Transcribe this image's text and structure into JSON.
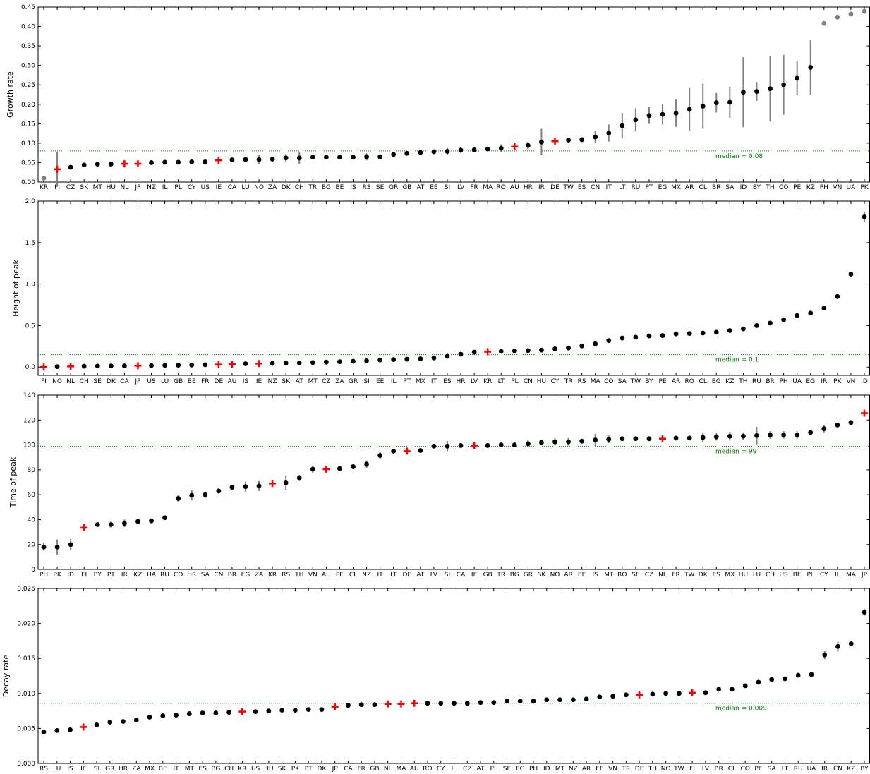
{
  "chart_data": [
    {
      "type": "scatter",
      "ylabel": "Growth rate",
      "ylim": [
        0,
        0.45
      ],
      "yticks": [
        "0.00",
        "0.05",
        "0.10",
        "0.15",
        "0.20",
        "0.25",
        "0.30",
        "0.35",
        "0.40",
        "0.45"
      ],
      "median": 0.08,
      "median_label": "median = 0.08",
      "categories": [
        "KR",
        "FI",
        "CZ",
        "SK",
        "MT",
        "HU",
        "NL",
        "JP",
        "NZ",
        "IL",
        "PL",
        "CY",
        "US",
        "IE",
        "CA",
        "LU",
        "NO",
        "ZA",
        "DK",
        "CH",
        "TR",
        "BG",
        "BE",
        "IS",
        "RS",
        "SE",
        "GR",
        "GB",
        "AT",
        "EE",
        "SI",
        "LV",
        "FR",
        "MA",
        "RO",
        "AU",
        "HR",
        "IR",
        "DE",
        "TW",
        "ES",
        "CN",
        "IT",
        "LT",
        "RU",
        "PT",
        "EG",
        "MX",
        "AR",
        "CL",
        "BR",
        "SA",
        "ID",
        "BY",
        "TH",
        "CO",
        "PE",
        "KZ",
        "PH",
        "VN",
        "UA",
        "PK"
      ],
      "values": [
        0.01,
        0.033,
        0.038,
        0.044,
        0.046,
        0.046,
        0.047,
        0.047,
        0.05,
        0.051,
        0.051,
        0.052,
        0.052,
        0.056,
        0.057,
        0.058,
        0.058,
        0.059,
        0.062,
        0.062,
        0.064,
        0.064,
        0.064,
        0.064,
        0.065,
        0.065,
        0.071,
        0.074,
        0.076,
        0.078,
        0.079,
        0.082,
        0.083,
        0.085,
        0.087,
        0.091,
        0.094,
        0.103,
        0.105,
        0.108,
        0.109,
        0.116,
        0.126,
        0.145,
        0.16,
        0.171,
        0.174,
        0.177,
        0.187,
        0.195,
        0.204,
        0.205,
        0.231,
        0.233,
        0.24,
        0.25,
        0.267,
        0.295,
        0.408,
        0.424,
        0.432,
        0.439
      ],
      "errors": [
        0,
        0.045,
        0,
        0,
        0,
        0,
        0,
        0,
        0,
        0,
        0,
        0,
        0,
        0,
        0,
        0,
        0.011,
        0,
        0.01,
        0.016,
        0,
        0,
        0,
        0,
        0.009,
        0,
        0,
        0,
        0,
        0,
        0.009,
        0.007,
        0,
        0,
        0.01,
        0,
        0.01,
        0.034,
        0.006,
        0.006,
        0.006,
        0.015,
        0.022,
        0.033,
        0.03,
        0.021,
        0.026,
        0.035,
        0.055,
        0.058,
        0.025,
        0.04,
        0.09,
        0.024,
        0.084,
        0.077,
        0.044,
        0.071,
        0,
        0,
        0,
        0
      ],
      "markers": [
        "grey",
        "cross",
        "dot",
        "dot",
        "dot",
        "dot",
        "cross",
        "cross",
        "dot",
        "dot",
        "dot",
        "dot",
        "dot",
        "cross",
        "dot",
        "dot",
        "dot",
        "dot",
        "dot",
        "dot",
        "dot",
        "dot",
        "dot",
        "dot",
        "dot",
        "dot",
        "dot",
        "dot",
        "dot",
        "dot",
        "dot",
        "dot",
        "dot",
        "dot",
        "dot",
        "cross",
        "dot",
        "dot",
        "cross",
        "dot",
        "dot",
        "dot",
        "dot",
        "dot",
        "dot",
        "dot",
        "dot",
        "dot",
        "dot",
        "dot",
        "dot",
        "dot",
        "dot",
        "dot",
        "dot",
        "dot",
        "dot",
        "dot",
        "grey",
        "grey",
        "grey",
        "grey"
      ]
    },
    {
      "type": "scatter",
      "ylabel": "Height of peak",
      "ylim": [
        -0.1,
        2.0
      ],
      "yticks": [
        "0.0",
        "0.5",
        "1.0",
        "1.5",
        "2.0"
      ],
      "median": 0.15,
      "median_label": "median = 0.1",
      "categories": [
        "FI",
        "NO",
        "NL",
        "CH",
        "SE",
        "DK",
        "CA",
        "JP",
        "US",
        "LU",
        "GB",
        "BE",
        "FR",
        "DE",
        "AU",
        "IS",
        "IE",
        "NZ",
        "SK",
        "AT",
        "MT",
        "CZ",
        "ZA",
        "GR",
        "SI",
        "EE",
        "IL",
        "PT",
        "MX",
        "IT",
        "ES",
        "HR",
        "LV",
        "KR",
        "LT",
        "PL",
        "CN",
        "HU",
        "CY",
        "TR",
        "RS",
        "MA",
        "CO",
        "SA",
        "TW",
        "BY",
        "PE",
        "AR",
        "RO",
        "CL",
        "BG",
        "KZ",
        "TH",
        "RU",
        "BR",
        "PH",
        "UA",
        "EG",
        "IR",
        "PK",
        "VN",
        "ID"
      ],
      "values": [
        0.0,
        0.005,
        0.008,
        0.01,
        0.012,
        0.013,
        0.015,
        0.016,
        0.018,
        0.02,
        0.022,
        0.025,
        0.028,
        0.03,
        0.035,
        0.04,
        0.042,
        0.045,
        0.048,
        0.05,
        0.055,
        0.06,
        0.065,
        0.07,
        0.075,
        0.085,
        0.09,
        0.095,
        0.1,
        0.11,
        0.13,
        0.155,
        0.18,
        0.185,
        0.19,
        0.195,
        0.2,
        0.205,
        0.22,
        0.23,
        0.255,
        0.28,
        0.32,
        0.35,
        0.36,
        0.375,
        0.38,
        0.4,
        0.405,
        0.41,
        0.42,
        0.44,
        0.46,
        0.5,
        0.53,
        0.57,
        0.62,
        0.65,
        0.71,
        0.85,
        1.12,
        1.81
      ],
      "errors": [
        0,
        0,
        0,
        0,
        0,
        0,
        0,
        0,
        0,
        0,
        0,
        0,
        0,
        0,
        0,
        0,
        0,
        0,
        0,
        0,
        0,
        0,
        0,
        0,
        0,
        0,
        0,
        0,
        0,
        0,
        0,
        0,
        0,
        0,
        0,
        0,
        0,
        0,
        0,
        0,
        0,
        0,
        0,
        0,
        0,
        0,
        0,
        0,
        0,
        0,
        0,
        0,
        0,
        0,
        0,
        0,
        0,
        0,
        0,
        0.03,
        0,
        0.06
      ],
      "markers": [
        "cross",
        "dot",
        "cross",
        "dot",
        "dot",
        "dot",
        "dot",
        "cross",
        "dot",
        "dot",
        "dot",
        "dot",
        "dot",
        "cross",
        "cross",
        "dot",
        "cross",
        "dot",
        "dot",
        "dot",
        "dot",
        "dot",
        "dot",
        "dot",
        "dot",
        "dot",
        "dot",
        "dot",
        "dot",
        "dot",
        "dot",
        "dot",
        "dot",
        "cross",
        "dot",
        "dot",
        "dot",
        "dot",
        "dot",
        "dot",
        "dot",
        "dot",
        "dot",
        "dot",
        "dot",
        "dot",
        "dot",
        "dot",
        "dot",
        "dot",
        "dot",
        "dot",
        "dot",
        "dot",
        "dot",
        "dot",
        "dot",
        "dot",
        "dot",
        "dot",
        "dot",
        "dot"
      ]
    },
    {
      "type": "scatter",
      "ylabel": "Time of peak",
      "ylim": [
        0,
        140
      ],
      "yticks": [
        "0",
        "20",
        "40",
        "60",
        "80",
        "100",
        "120",
        "140"
      ],
      "median": 99,
      "median_label": "median = 99",
      "categories": [
        "PH",
        "PK",
        "ID",
        "FI",
        "BY",
        "PT",
        "IR",
        "KZ",
        "UA",
        "RU",
        "CO",
        "HR",
        "SA",
        "CN",
        "BR",
        "EG",
        "ZA",
        "KR",
        "RS",
        "TH",
        "VN",
        "AU",
        "PE",
        "CL",
        "NZ",
        "IT",
        "LT",
        "DE",
        "AT",
        "LV",
        "SI",
        "CA",
        "IE",
        "GB",
        "TR",
        "BG",
        "GR",
        "SK",
        "NO",
        "AR",
        "EE",
        "IS",
        "MT",
        "RO",
        "SE",
        "CZ",
        "NL",
        "FR",
        "TW",
        "DK",
        "ES",
        "MX",
        "HU",
        "LU",
        "CH",
        "US",
        "BE",
        "PL",
        "CY",
        "IL",
        "MA",
        "JP"
      ],
      "values": [
        18,
        18,
        20,
        33.5,
        36,
        36,
        37,
        38.5,
        39,
        41.5,
        57,
        59.5,
        60,
        63,
        66,
        66.5,
        67,
        69,
        69.5,
        73.5,
        80.5,
        80.5,
        81,
        82.5,
        84.5,
        91.5,
        95,
        95,
        95.5,
        99,
        99,
        99.5,
        99.5,
        99.5,
        100,
        100,
        101,
        102,
        102.5,
        102.5,
        103,
        104,
        104.5,
        105,
        105,
        105,
        105,
        105.5,
        105.5,
        106,
        106.5,
        107,
        107,
        107.5,
        108,
        108,
        108,
        110,
        113,
        116,
        118,
        125.5
      ],
      "errors": [
        3,
        6,
        4.5,
        0,
        0,
        3,
        3,
        0,
        0,
        0,
        2.5,
        4,
        2.5,
        2,
        0,
        4,
        4,
        0,
        6,
        2.5,
        3,
        2,
        2,
        2,
        3,
        3,
        2,
        0,
        1.5,
        1.5,
        4,
        0,
        0,
        0,
        0,
        0,
        3,
        0,
        3,
        3,
        2,
        5,
        3,
        0,
        0,
        0,
        0,
        2,
        2,
        4,
        3,
        3.5,
        3,
        7,
        3,
        3,
        3,
        0,
        3,
        0,
        0,
        0
      ],
      "markers": [
        "dot",
        "dot",
        "dot",
        "cross",
        "dot",
        "dot",
        "dot",
        "dot",
        "dot",
        "dot",
        "dot",
        "dot",
        "dot",
        "dot",
        "dot",
        "dot",
        "dot",
        "cross",
        "dot",
        "dot",
        "dot",
        "cross",
        "dot",
        "dot",
        "dot",
        "dot",
        "dot",
        "cross",
        "dot",
        "dot",
        "dot",
        "dot",
        "cross",
        "dot",
        "dot",
        "dot",
        "dot",
        "dot",
        "dot",
        "dot",
        "dot",
        "dot",
        "dot",
        "dot",
        "dot",
        "dot",
        "cross",
        "dot",
        "dot",
        "dot",
        "dot",
        "dot",
        "dot",
        "dot",
        "dot",
        "dot",
        "dot",
        "dot",
        "dot",
        "dot",
        "dot",
        "cross"
      ]
    },
    {
      "type": "scatter",
      "ylabel": "Decay rate",
      "ylim": [
        0,
        0.025
      ],
      "yticks": [
        "0.000",
        "0.005",
        "0.010",
        "0.015",
        "0.020",
        "0.025"
      ],
      "median": 0.0086,
      "median_label": "median = 0.009",
      "categories": [
        "RS",
        "LU",
        "IS",
        "IE",
        "SI",
        "GR",
        "HR",
        "ZA",
        "MX",
        "BE",
        "IT",
        "MT",
        "ES",
        "BG",
        "CH",
        "KR",
        "US",
        "HU",
        "SK",
        "PK",
        "PT",
        "DK",
        "JP",
        "CA",
        "FR",
        "GB",
        "NL",
        "MA",
        "AU",
        "RO",
        "CY",
        "IL",
        "CZ",
        "AT",
        "PL",
        "SE",
        "EG",
        "PH",
        "ID",
        "MT",
        "NZ",
        "AR",
        "EE",
        "VN",
        "TR",
        "DE",
        "TH",
        "NO",
        "TW",
        "FI",
        "LV",
        "BR",
        "CL",
        "CO",
        "PE",
        "SA",
        "LT",
        "RU",
        "UA",
        "IR",
        "CN",
        "KZ",
        "BY"
      ],
      "values": [
        0.0045,
        0.0047,
        0.0048,
        0.0052,
        0.0055,
        0.0059,
        0.006,
        0.0062,
        0.0066,
        0.0068,
        0.0069,
        0.0071,
        0.0072,
        0.0072,
        0.0073,
        0.0074,
        0.0074,
        0.0075,
        0.0076,
        0.0076,
        0.0077,
        0.0077,
        0.0081,
        0.0083,
        0.0084,
        0.0084,
        0.0085,
        0.0085,
        0.0086,
        0.0086,
        0.0086,
        0.0086,
        0.0086,
        0.0087,
        0.0087,
        0.0089,
        0.0089,
        0.0089,
        0.0091,
        0.0091,
        0.0091,
        0.0092,
        0.0095,
        0.0096,
        0.0098,
        0.0098,
        0.0099,
        0.01,
        0.01,
        0.0101,
        0.0101,
        0.0106,
        0.0106,
        0.0111,
        0.0116,
        0.012,
        0.0121,
        0.0126,
        0.0127,
        0.0155,
        0.0167,
        0.0171,
        0.0216
      ],
      "errors": [
        0,
        0,
        0,
        0,
        0,
        0,
        0,
        0,
        0,
        0,
        0,
        0,
        0,
        0,
        0,
        0,
        0,
        0,
        0,
        0,
        0,
        0,
        0,
        0,
        0,
        0,
        0,
        0,
        0,
        0,
        0,
        0,
        0,
        0,
        0,
        0,
        0,
        0,
        0,
        0,
        0,
        0,
        0,
        0,
        0,
        0,
        0,
        0,
        0,
        0,
        0,
        0,
        0,
        0,
        0.0003,
        0,
        0.0003,
        0,
        0,
        0.0006,
        0.0007,
        0.0004,
        0.0005
      ],
      "markers": [
        "dot",
        "dot",
        "dot",
        "cross",
        "dot",
        "dot",
        "dot",
        "dot",
        "dot",
        "dot",
        "dot",
        "dot",
        "dot",
        "dot",
        "dot",
        "cross",
        "dot",
        "dot",
        "dot",
        "dot",
        "dot",
        "dot",
        "cross",
        "dot",
        "dot",
        "dot",
        "cross",
        "cross",
        "cross",
        "dot",
        "dot",
        "dot",
        "dot",
        "dot",
        "dot",
        "dot",
        "dot",
        "dot",
        "dot",
        "dot",
        "dot",
        "dot",
        "dot",
        "dot",
        "dot",
        "cross",
        "dot",
        "dot",
        "dot",
        "cross",
        "dot",
        "dot",
        "dot",
        "dot",
        "dot",
        "dot",
        "dot",
        "dot",
        "dot",
        "dot",
        "dot",
        "dot",
        "dot"
      ]
    }
  ],
  "colors": {
    "point": "#000000",
    "grey_point": "#808080",
    "error_bar": "#808080",
    "cross": "#ff0000",
    "median_line": "#008000",
    "median_text": "#008000"
  }
}
